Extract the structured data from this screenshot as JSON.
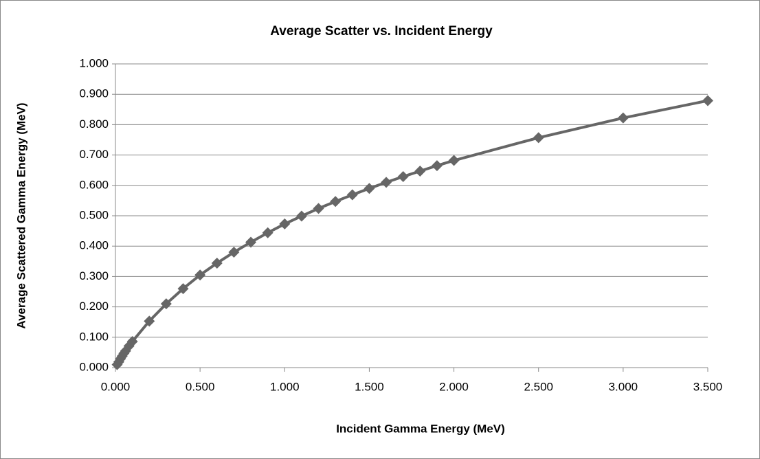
{
  "chart_data": {
    "type": "scatter-line",
    "title": "Average Scatter vs. Incident Energy",
    "x_label": "Incident Gamma Energy (MeV)",
    "y_label": "Average Scattered Gamma Energy (MeV)",
    "series": [
      {
        "color": "#666666",
        "x": [
          0.01,
          0.02,
          0.03,
          0.04,
          0.05,
          0.06,
          0.08,
          0.1,
          0.2,
          0.3,
          0.4,
          0.5,
          0.6,
          0.7,
          0.8,
          0.9,
          1.0,
          1.1,
          1.2,
          1.3,
          1.4,
          1.5,
          1.6,
          1.7,
          1.8,
          1.9,
          2.0,
          2.5,
          3.0,
          3.5
        ],
        "values": [
          0.01,
          0.019,
          0.029,
          0.038,
          0.047,
          0.055,
          0.071,
          0.086,
          0.153,
          0.21,
          0.26,
          0.305,
          0.344,
          0.38,
          0.413,
          0.444,
          0.473,
          0.499,
          0.524,
          0.547,
          0.569,
          0.59,
          0.61,
          0.629,
          0.647,
          0.665,
          0.682,
          0.757,
          0.822,
          0.879
        ]
      }
    ],
    "xlim": [
      0,
      3.5
    ],
    "xticks": [
      {
        "value": 0,
        "label": "0.000"
      },
      {
        "value": 0.5,
        "label": "0.500"
      },
      {
        "value": 1.0,
        "label": "1.000"
      },
      {
        "value": 1.5,
        "label": "1.500"
      },
      {
        "value": 2.0,
        "label": "2.000"
      },
      {
        "value": 2.5,
        "label": "2.500"
      },
      {
        "value": 3.0,
        "label": "3.000"
      },
      {
        "value": 3.5,
        "label": "3.500"
      }
    ],
    "ylim": [
      0,
      1
    ],
    "yticks": [
      {
        "value": 0,
        "label": "0.000"
      },
      {
        "value": 0.1,
        "label": "0.100"
      },
      {
        "value": 0.2,
        "label": "0.200"
      },
      {
        "value": 0.3,
        "label": "0.300"
      },
      {
        "value": 0.4,
        "label": "0.400"
      },
      {
        "value": 0.5,
        "label": "0.500"
      },
      {
        "value": 0.6,
        "label": "0.600"
      },
      {
        "value": 0.7,
        "label": "0.700"
      },
      {
        "value": 0.8,
        "label": "0.800"
      },
      {
        "value": 0.9,
        "label": "0.900"
      },
      {
        "value": 1.0,
        "label": "1.000"
      }
    ],
    "grid": true
  }
}
